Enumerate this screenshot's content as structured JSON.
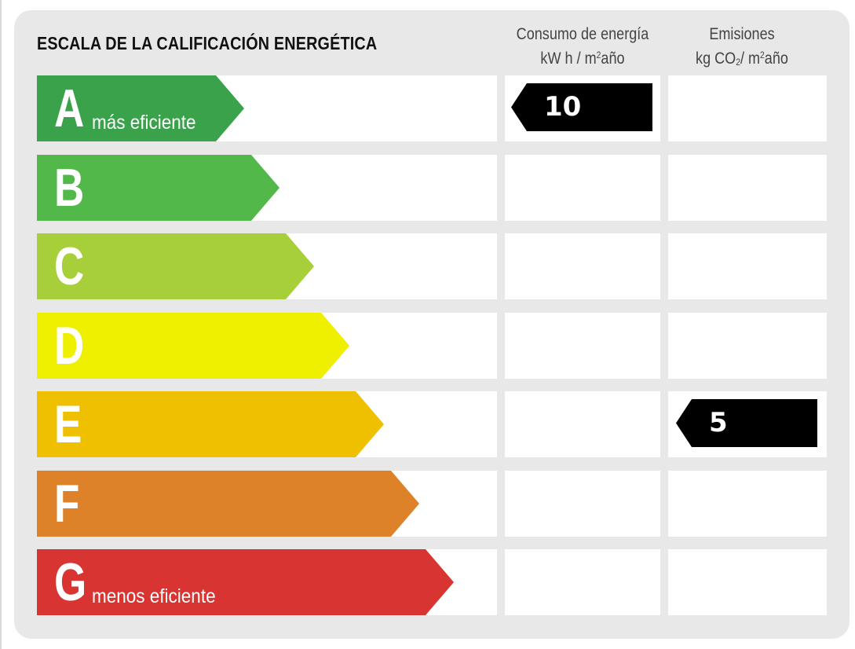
{
  "title": "ESCALA DE LA CALIFICACIÓN ENERGÉTICA",
  "columns": {
    "energy": {
      "line1": "Consumo de energía",
      "line2_pre": "kW h / m",
      "line2_sup": "2",
      "line2_post": "año"
    },
    "emissions": {
      "line1": "Emisiones",
      "line2_pre": "kg CO",
      "line2_sub": "2",
      "line2_mid": "/ m",
      "line2_sup": "2",
      "line2_post": "año"
    }
  },
  "ratings": [
    {
      "letter": "A",
      "note": "más eficiente",
      "color": "#3aa24a"
    },
    {
      "letter": "B",
      "note": "",
      "color": "#52b84a"
    },
    {
      "letter": "C",
      "note": "",
      "color": "#a6cf3a"
    },
    {
      "letter": "D",
      "note": "",
      "color": "#eef000"
    },
    {
      "letter": "E",
      "note": "",
      "color": "#efc000"
    },
    {
      "letter": "F",
      "note": "",
      "color": "#dd8228"
    },
    {
      "letter": "G",
      "note": "menos eficiente",
      "color": "#d83431"
    }
  ],
  "energy_rating": {
    "letter": "A",
    "value": "10"
  },
  "emissions_rating": {
    "letter": "E",
    "value": "5"
  },
  "marker_color": "#000000"
}
